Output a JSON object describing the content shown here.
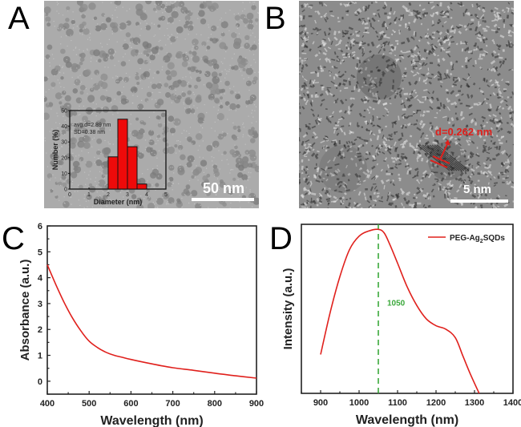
{
  "figure": {
    "panels": [
      {
        "letter": "A",
        "kind": "TEM image",
        "scale_bar": "50 nm"
      },
      {
        "letter": "B",
        "kind": "HRTEM image",
        "scale_bar": "5 nm",
        "annotation": "d=0.262 nm"
      },
      {
        "letter": "C",
        "kind": "UV-vis-NIR absorbance spectrum"
      },
      {
        "letter": "D",
        "kind": "NIR photoluminescence spectrum"
      }
    ]
  },
  "inset": {
    "stats_line1": "avg.d=2.89 nm",
    "stats_line2": "SD=0.38 nm"
  },
  "colors": {
    "curve": "#e0201c",
    "peak_line": "#3aa83a",
    "axis": "#222222"
  },
  "chart_data": [
    {
      "id": "inset-histogram",
      "type": "bar",
      "title": "",
      "xlabel": "Diameter (nm)",
      "ylabel": "Number (%)",
      "xlim": [
        0,
        5
      ],
      "ylim": [
        0,
        50
      ],
      "xticks": [
        "0",
        "1",
        "2",
        "3",
        "4",
        "5"
      ],
      "yticks": [
        "0",
        "10",
        "20",
        "30",
        "40",
        "50"
      ],
      "bin_width": 0.5,
      "bins": [
        2.25,
        2.75,
        3.25,
        3.75
      ],
      "values": [
        20.5,
        44.5,
        27,
        3.2
      ],
      "grid": false
    },
    {
      "id": "absorbance",
      "type": "line",
      "title": "",
      "xlabel": "Wavelength (nm)",
      "ylabel": "Absorbance (a.u.)",
      "xlim": [
        400,
        900
      ],
      "ylim": [
        -0.5,
        6
      ],
      "xticks": [
        "400",
        "500",
        "600",
        "700",
        "800",
        "900"
      ],
      "yticks": [
        "0",
        "1",
        "2",
        "3",
        "4",
        "5",
        "6"
      ],
      "grid": false,
      "series": [
        {
          "name": "Absorbance",
          "x": [
            400,
            420,
            440,
            460,
            480,
            500,
            520,
            540,
            560,
            580,
            600,
            650,
            700,
            750,
            800,
            850,
            900
          ],
          "y": [
            4.5,
            3.75,
            3.05,
            2.45,
            1.95,
            1.55,
            1.3,
            1.12,
            1.0,
            0.92,
            0.84,
            0.67,
            0.52,
            0.42,
            0.31,
            0.21,
            0.12
          ]
        }
      ]
    },
    {
      "id": "photoluminescence",
      "type": "line",
      "title": "",
      "xlabel": "Wavelength (nm)",
      "ylabel": "Intensity (a.u.)",
      "xlim": [
        850,
        1400
      ],
      "ylim": [
        0,
        1
      ],
      "xticks": [
        "900",
        "1000",
        "1100",
        "1200",
        "1300",
        "1400"
      ],
      "yticks": [],
      "grid": false,
      "legend": {
        "position": "top-right",
        "entries": [
          "PEG-Ag2SQDs"
        ],
        "label_main": "PEG-Ag",
        "label_sub": "2",
        "label_tail": "SQDs"
      },
      "annotations": [
        {
          "type": "vline",
          "x": 1050,
          "label": "1050",
          "style": "dashed"
        }
      ],
      "series": [
        {
          "name": "PEG-Ag2SQDs",
          "x": [
            900,
            925,
            950,
            975,
            1000,
            1025,
            1050,
            1065,
            1080,
            1100,
            1125,
            1150,
            1175,
            1200,
            1225,
            1250,
            1270,
            1290,
            1312
          ],
          "y": [
            0.23,
            0.48,
            0.69,
            0.85,
            0.93,
            0.96,
            0.97,
            0.95,
            0.88,
            0.77,
            0.63,
            0.52,
            0.44,
            0.4,
            0.38,
            0.33,
            0.22,
            0.11,
            0.0
          ]
        }
      ]
    }
  ]
}
